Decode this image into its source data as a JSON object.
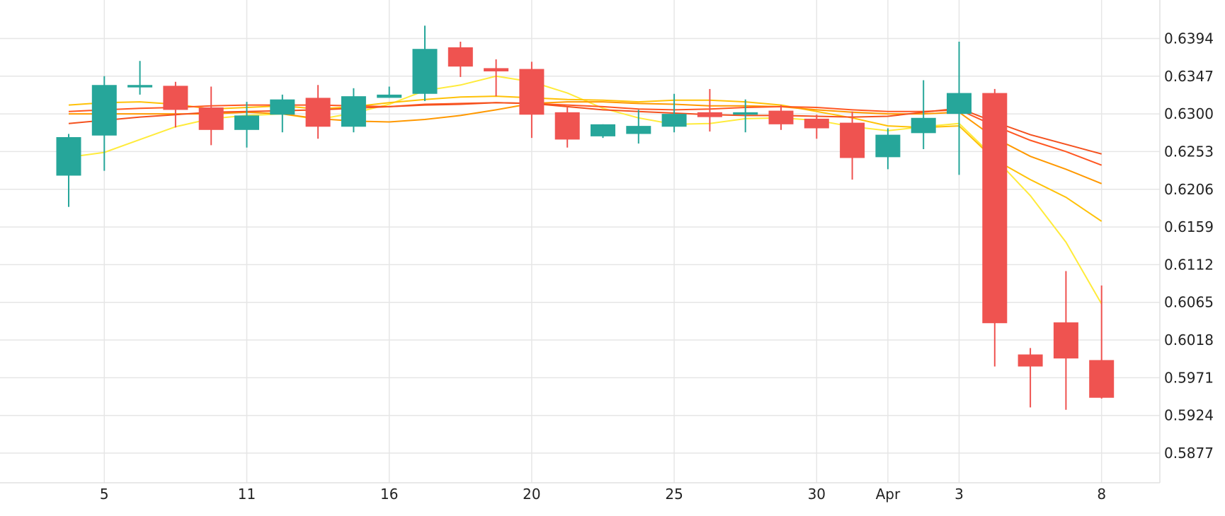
{
  "chart_data": {
    "type": "candlestick",
    "title": "",
    "xlabel": "",
    "ylabel": "",
    "ylim": [
      0.584,
      0.6442
    ],
    "yticks": [
      "0.6394",
      "0.6347",
      "0.6300",
      "0.6253",
      "0.6206",
      "0.6159",
      "0.6112",
      "0.6065",
      "0.6018",
      "0.5971",
      "0.5924",
      "0.5877"
    ],
    "xticks": [
      {
        "label": "5",
        "index": 1
      },
      {
        "label": "11",
        "index": 5
      },
      {
        "label": "16",
        "index": 9
      },
      {
        "label": "20",
        "index": 13
      },
      {
        "label": "25",
        "index": 17
      },
      {
        "label": "30",
        "index": 21
      },
      {
        "label": "Apr",
        "index": 23
      },
      {
        "label": "3",
        "index": 25
      },
      {
        "label": "8",
        "index": 29
      }
    ],
    "up_color": "#26a69a",
    "down_color": "#ef5350",
    "candles": [
      {
        "o": 0.6223,
        "h": 0.6275,
        "l": 0.6184,
        "c": 0.6271
      },
      {
        "o": 0.6273,
        "h": 0.6347,
        "l": 0.6229,
        "c": 0.6336
      },
      {
        "o": 0.6333,
        "h": 0.6366,
        "l": 0.6324,
        "c": 0.6336
      },
      {
        "o": 0.6335,
        "h": 0.634,
        "l": 0.6283,
        "c": 0.6305
      },
      {
        "o": 0.6308,
        "h": 0.6334,
        "l": 0.6261,
        "c": 0.628
      },
      {
        "o": 0.628,
        "h": 0.6315,
        "l": 0.6258,
        "c": 0.6298
      },
      {
        "o": 0.6299,
        "h": 0.6324,
        "l": 0.6277,
        "c": 0.6318
      },
      {
        "o": 0.632,
        "h": 0.6336,
        "l": 0.6269,
        "c": 0.6284
      },
      {
        "o": 0.6284,
        "h": 0.6332,
        "l": 0.6277,
        "c": 0.6322
      },
      {
        "o": 0.632,
        "h": 0.6334,
        "l": 0.632,
        "c": 0.6324
      },
      {
        "o": 0.6325,
        "h": 0.641,
        "l": 0.6316,
        "c": 0.6381
      },
      {
        "o": 0.6383,
        "h": 0.639,
        "l": 0.6346,
        "c": 0.6359
      },
      {
        "o": 0.6357,
        "h": 0.6368,
        "l": 0.6322,
        "c": 0.6353
      },
      {
        "o": 0.6356,
        "h": 0.6365,
        "l": 0.627,
        "c": 0.6299
      },
      {
        "o": 0.6302,
        "h": 0.6308,
        "l": 0.6258,
        "c": 0.6268
      },
      {
        "o": 0.6272,
        "h": 0.6287,
        "l": 0.627,
        "c": 0.6287
      },
      {
        "o": 0.6275,
        "h": 0.6305,
        "l": 0.6263,
        "c": 0.6285
      },
      {
        "o": 0.6284,
        "h": 0.6325,
        "l": 0.6277,
        "c": 0.63
      },
      {
        "o": 0.6302,
        "h": 0.6331,
        "l": 0.6278,
        "c": 0.6296
      },
      {
        "o": 0.6299,
        "h": 0.6318,
        "l": 0.6277,
        "c": 0.6302
      },
      {
        "o": 0.6304,
        "h": 0.6311,
        "l": 0.628,
        "c": 0.6287
      },
      {
        "o": 0.6294,
        "h": 0.6299,
        "l": 0.6269,
        "c": 0.6282
      },
      {
        "o": 0.6289,
        "h": 0.6303,
        "l": 0.6218,
        "c": 0.6245
      },
      {
        "o": 0.6246,
        "h": 0.6282,
        "l": 0.6231,
        "c": 0.6274
      },
      {
        "o": 0.6276,
        "h": 0.6342,
        "l": 0.6256,
        "c": 0.6295
      },
      {
        "o": 0.63,
        "h": 0.639,
        "l": 0.6224,
        "c": 0.6326
      },
      {
        "o": 0.6326,
        "h": 0.6331,
        "l": 0.5985,
        "c": 0.6039
      },
      {
        "o": 0.6,
        "h": 0.6008,
        "l": 0.5934,
        "c": 0.5985
      },
      {
        "o": 0.604,
        "h": 0.6104,
        "l": 0.5931,
        "c": 0.5995
      },
      {
        "o": 0.5993,
        "h": 0.6086,
        "l": 0.5945,
        "c": 0.5946
      }
    ],
    "moving_averages": [
      {
        "color": "#ffeb3b",
        "values": [
          0.6246,
          0.6252,
          0.6268,
          0.6284,
          0.6294,
          0.6298,
          0.63,
          0.6293,
          0.6301,
          0.6312,
          0.6329,
          0.6336,
          0.6347,
          0.634,
          0.6326,
          0.6307,
          0.6295,
          0.6287,
          0.6288,
          0.6294,
          0.6295,
          0.6292,
          0.6284,
          0.6279,
          0.6284,
          0.6288,
          0.6245,
          0.6198,
          0.614,
          0.6063
        ]
      },
      {
        "color": "#ffc107",
        "values": [
          0.6311,
          0.6314,
          0.6315,
          0.6312,
          0.6306,
          0.6308,
          0.631,
          0.6306,
          0.6309,
          0.6314,
          0.6318,
          0.6321,
          0.6322,
          0.632,
          0.6318,
          0.6317,
          0.6315,
          0.6317,
          0.6317,
          0.6315,
          0.6311,
          0.6303,
          0.6295,
          0.6285,
          0.6283,
          0.6285,
          0.6243,
          0.6218,
          0.6196,
          0.6166
        ]
      },
      {
        "color": "#ff9800",
        "values": [
          0.63,
          0.63,
          0.63,
          0.63,
          0.63,
          0.6302,
          0.63,
          0.6294,
          0.6291,
          0.629,
          0.6293,
          0.6298,
          0.6305,
          0.6313,
          0.6315,
          0.6315,
          0.6313,
          0.6312,
          0.631,
          0.631,
          0.6309,
          0.6305,
          0.6302,
          0.63,
          0.63,
          0.6302,
          0.627,
          0.6247,
          0.6231,
          0.6213
        ]
      },
      {
        "color": "#ff5722",
        "values": [
          0.6303,
          0.6305,
          0.6307,
          0.6308,
          0.631,
          0.6311,
          0.6311,
          0.6311,
          0.631,
          0.6309,
          0.6312,
          0.6313,
          0.6314,
          0.6313,
          0.6311,
          0.6309,
          0.6306,
          0.6305,
          0.6306,
          0.6308,
          0.6309,
          0.6308,
          0.6305,
          0.6303,
          0.6303,
          0.6305,
          0.6285,
          0.6267,
          0.6253,
          0.6236
        ]
      },
      {
        "color": "#f4511e",
        "values": [
          0.6288,
          0.6292,
          0.6296,
          0.6299,
          0.6302,
          0.6303,
          0.6304,
          0.6305,
          0.6307,
          0.6309,
          0.6311,
          0.6312,
          0.6314,
          0.6313,
          0.6309,
          0.6305,
          0.6303,
          0.6301,
          0.6299,
          0.6298,
          0.6298,
          0.6297,
          0.6296,
          0.6297,
          0.6302,
          0.6307,
          0.629,
          0.6274,
          0.6262,
          0.625
        ]
      }
    ]
  }
}
